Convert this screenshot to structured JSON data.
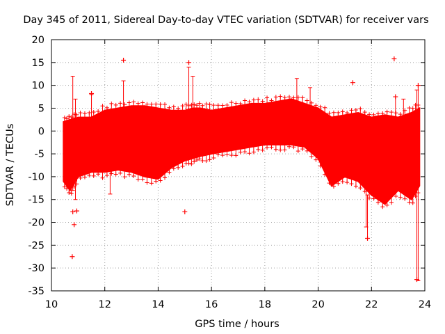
{
  "chart_data": {
    "type": "scatter",
    "title": "Day 345 of 2011, Sidereal Day-to-day VTEC variation (SDTVAR) for receiver vars",
    "xlabel": "GPS time / hours",
    "ylabel": "SDTVAR / TECUs",
    "xlim": [
      10,
      24
    ],
    "ylim": [
      -35,
      20
    ],
    "grid": true,
    "xticks": [
      10,
      12,
      14,
      16,
      18,
      20,
      22,
      24
    ],
    "yticks": [
      20,
      15,
      10,
      5,
      0,
      -5,
      -10,
      -15,
      -20,
      -25,
      -30,
      -35
    ],
    "xtick_labels": [
      "10",
      "12",
      "14",
      "16",
      "18",
      "20",
      "22",
      "24"
    ],
    "ytick_labels": [
      "20",
      "15",
      "10",
      "5",
      "0",
      "-5",
      "-10",
      "-15",
      "-20",
      "-25",
      "-30",
      "-35"
    ],
    "marker": "+",
    "color": "#ff0000",
    "series": [
      {
        "name": "SDTVAR",
        "envelope": {
          "x": [
            10.45,
            10.7,
            11.0,
            11.5,
            12.0,
            12.5,
            13.0,
            13.5,
            14.0,
            14.5,
            15.0,
            15.3,
            15.6,
            16.0,
            16.5,
            17.0,
            17.5,
            18.0,
            18.5,
            19.0,
            19.5,
            20.0,
            20.5,
            21.0,
            21.5,
            22.0,
            22.5,
            23.0,
            23.5,
            23.8
          ],
          "upper": [
            2.0,
            2.5,
            3.0,
            3.0,
            4.5,
            5.0,
            5.5,
            5.5,
            5.0,
            4.5,
            4.5,
            5.0,
            5.0,
            4.5,
            5.0,
            5.5,
            6.0,
            6.0,
            6.5,
            7.0,
            6.0,
            5.0,
            3.0,
            3.5,
            4.0,
            3.0,
            3.5,
            3.0,
            4.0,
            5.0
          ],
          "lower": [
            -11.0,
            -13.0,
            -10.0,
            -9.0,
            -9.0,
            -8.5,
            -9.0,
            -10.0,
            -10.5,
            -8.0,
            -6.5,
            -6.0,
            -5.5,
            -5.0,
            -4.5,
            -4.0,
            -3.5,
            -3.0,
            -3.0,
            -3.0,
            -3.5,
            -6.0,
            -12.0,
            -10.0,
            -11.0,
            -14.0,
            -16.0,
            -13.0,
            -15.0,
            -12.0
          ]
        },
        "spikes": [
          {
            "x": 10.8,
            "low": -13.0,
            "high": 12.0
          },
          {
            "x": 10.9,
            "low": -15.0,
            "high": 7.0
          },
          {
            "x": 11.5,
            "low": -8.0,
            "high": 8.0
          },
          {
            "x": 12.2,
            "low": -13.8,
            "high": -6.0
          },
          {
            "x": 12.7,
            "low": 5.0,
            "high": 11.0
          },
          {
            "x": 15.15,
            "low": -5.0,
            "high": 14.0
          },
          {
            "x": 15.3,
            "low": -5.0,
            "high": 12.0
          },
          {
            "x": 19.2,
            "low": 5.0,
            "high": 11.5
          },
          {
            "x": 19.7,
            "low": 4.0,
            "high": 9.5
          },
          {
            "x": 21.8,
            "low": -21.0,
            "high": 2.0
          },
          {
            "x": 21.85,
            "low": -23.5,
            "high": -14.0
          },
          {
            "x": 22.9,
            "low": 2.0,
            "high": 7.5
          },
          {
            "x": 23.2,
            "low": 1.0,
            "high": 7.0
          },
          {
            "x": 23.7,
            "low": -32.5,
            "high": 9.0
          },
          {
            "x": 23.75,
            "low": -32.8,
            "high": 10.0
          }
        ],
        "outliers": [
          {
            "x": 10.78,
            "y": -27.5
          },
          {
            "x": 10.8,
            "y": -17.7
          },
          {
            "x": 10.85,
            "y": -20.5
          },
          {
            "x": 10.95,
            "y": -17.5
          },
          {
            "x": 11.5,
            "y": 8.2
          },
          {
            "x": 12.7,
            "y": 15.5
          },
          {
            "x": 15.0,
            "y": -17.7
          },
          {
            "x": 15.15,
            "y": 15.0
          },
          {
            "x": 21.3,
            "y": 10.6
          },
          {
            "x": 21.85,
            "y": -23.5
          },
          {
            "x": 22.85,
            "y": 15.8
          },
          {
            "x": 22.9,
            "y": 7.5
          },
          {
            "x": 23.7,
            "y": -32.5
          },
          {
            "x": 23.75,
            "y": 10.0
          }
        ]
      }
    ]
  }
}
